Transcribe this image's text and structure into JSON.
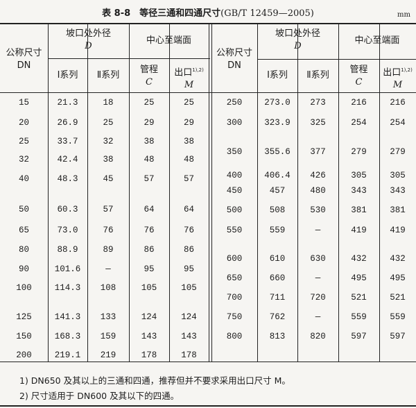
{
  "title": {
    "label": "表 8-8　等径三通和四通尺寸",
    "standard": "(GB/T 12459—2005)"
  },
  "unit": "mm",
  "headers": {
    "nominal_size": "公称尺寸",
    "dn": "DN",
    "outer_diameter": "坡口处外径",
    "d_symbol": "D",
    "series1": "Ⅰ系列",
    "series2": "Ⅱ系列",
    "center_to_end": "中心至端面",
    "run": "管程",
    "c_symbol": "C",
    "outlet": "出口",
    "outlet_note": "1),2)",
    "m_symbol": "M"
  },
  "left_rows": [
    [
      "15",
      "21.3",
      "18",
      "25",
      "25"
    ],
    [
      "20",
      "26.9",
      "25",
      "29",
      "29"
    ],
    [
      "25",
      "33.7",
      "32",
      "38",
      "38"
    ],
    [
      "32",
      "42.4",
      "38",
      "48",
      "48"
    ],
    [
      "40",
      "48.3",
      "45",
      "57",
      "57"
    ],
    [
      "50",
      "60.3",
      "57",
      "64",
      "64"
    ],
    [
      "65",
      "73.0",
      "76",
      "76",
      "76"
    ],
    [
      "80",
      "88.9",
      "89",
      "86",
      "86"
    ],
    [
      "90",
      "101.6",
      "—",
      "95",
      "95"
    ],
    [
      "100",
      "114.3",
      "108",
      "105",
      "105"
    ],
    [
      "125",
      "141.3",
      "133",
      "124",
      "124"
    ],
    [
      "150",
      "168.3",
      "159",
      "143",
      "143"
    ],
    [
      "200",
      "219.1",
      "219",
      "178",
      "178"
    ]
  ],
  "right_rows": [
    [
      "250",
      "273.0",
      "273",
      "216",
      "216"
    ],
    [
      "300",
      "323.9",
      "325",
      "254",
      "254"
    ],
    [
      "350",
      "355.6",
      "377",
      "279",
      "279"
    ],
    [
      "400",
      "406.4",
      "426",
      "305",
      "305"
    ],
    [
      "450",
      "457",
      "480",
      "343",
      "343"
    ],
    [
      "500",
      "508",
      "530",
      "381",
      "381"
    ],
    [
      "550",
      "559",
      "—",
      "419",
      "419"
    ],
    [
      "600",
      "610",
      "630",
      "432",
      "432"
    ],
    [
      "650",
      "660",
      "—",
      "495",
      "495"
    ],
    [
      "700",
      "711",
      "720",
      "521",
      "521"
    ],
    [
      "750",
      "762",
      "—",
      "559",
      "559"
    ],
    [
      "800",
      "813",
      "820",
      "597",
      "597"
    ]
  ],
  "footnotes": [
    "1) DN650 及其以上的三通和四通，推荐但并不要求采用出口尺寸 M。",
    "2) 尺寸适用于 DN600 及其以下的四通。"
  ]
}
